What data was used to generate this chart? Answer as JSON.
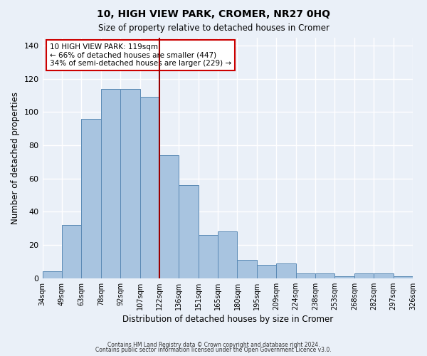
{
  "title": "10, HIGH VIEW PARK, CROMER, NR27 0HQ",
  "subtitle": "Size of property relative to detached houses in Cromer",
  "xlabel": "Distribution of detached houses by size in Cromer",
  "ylabel": "Number of detached properties",
  "bar_values": [
    4,
    32,
    96,
    114,
    114,
    109,
    74,
    56,
    26,
    28,
    11,
    8,
    9,
    3,
    3,
    1,
    3,
    3,
    1
  ],
  "bin_labels": [
    "34sqm",
    "49sqm",
    "63sqm",
    "78sqm",
    "92sqm",
    "107sqm",
    "122sqm",
    "136sqm",
    "151sqm",
    "165sqm",
    "180sqm",
    "195sqm",
    "209sqm",
    "224sqm",
    "238sqm",
    "253sqm",
    "268sqm",
    "282sqm",
    "297sqm",
    "326sqm"
  ],
  "bar_color": "#a8c4e0",
  "bar_edge_color": "#5a8ab5",
  "vline_x": 5.5,
  "vline_color": "#990000",
  "annotation_text": "10 HIGH VIEW PARK: 119sqm\n← 66% of detached houses are smaller (447)\n34% of semi-detached houses are larger (229) →",
  "annotation_box_color": "#ffffff",
  "annotation_box_edge_color": "#cc0000",
  "ylim": [
    0,
    145
  ],
  "yticks": [
    0,
    20,
    40,
    60,
    80,
    100,
    120,
    140
  ],
  "footer1": "Contains HM Land Registry data © Crown copyright and database right 2024.",
  "footer2": "Contains public sector information licensed under the Open Government Licence v3.0.",
  "background_color": "#eaf0f8",
  "grid_color": "#ffffff"
}
